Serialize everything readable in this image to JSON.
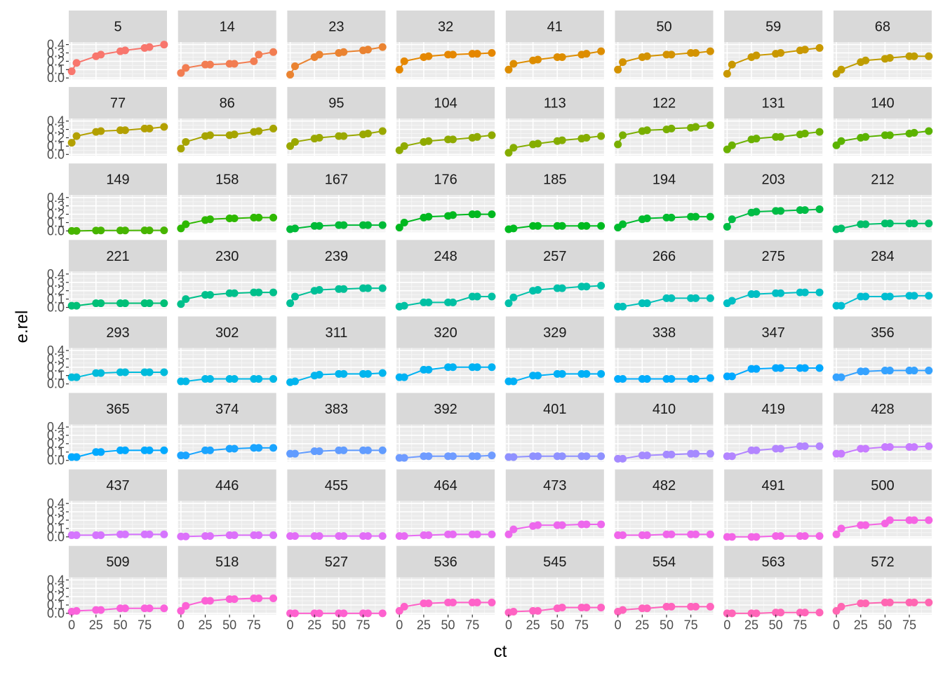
{
  "chart_data": {
    "type": "line",
    "facet_panels": [
      "5",
      "14",
      "23",
      "32",
      "41",
      "50",
      "59",
      "68",
      "77",
      "86",
      "95",
      "104",
      "113",
      "122",
      "131",
      "140",
      "149",
      "158",
      "167",
      "176",
      "185",
      "194",
      "203",
      "212",
      "221",
      "230",
      "239",
      "248",
      "257",
      "266",
      "275",
      "284",
      "293",
      "302",
      "311",
      "320",
      "329",
      "338",
      "347",
      "356",
      "365",
      "374",
      "383",
      "392",
      "401",
      "410",
      "419",
      "428",
      "437",
      "446",
      "455",
      "464",
      "473",
      "482",
      "491",
      "500",
      "509",
      "518",
      "527",
      "536",
      "545",
      "554",
      "563",
      "572"
    ],
    "xlabel": "ct",
    "ylabel": "e.rel",
    "x_ticks": [
      "0",
      "25",
      "50",
      "75"
    ],
    "y_ticks": [
      "0.0",
      "0.1",
      "0.2",
      "0.3",
      "0.4"
    ],
    "xlim": [
      -3,
      98
    ],
    "ylim": [
      -0.015,
      0.43
    ],
    "grid": true,
    "legend": "none",
    "x": [
      0,
      5,
      25,
      30,
      50,
      55,
      75,
      80,
      95
    ],
    "series": [
      {
        "panel": "5",
        "color": "#F8766D",
        "values": [
          0.08,
          0.18,
          0.26,
          0.28,
          0.32,
          0.33,
          0.36,
          0.37,
          0.4
        ]
      },
      {
        "panel": "14",
        "color": "#F27D52",
        "values": [
          0.06,
          0.12,
          0.16,
          0.16,
          0.17,
          0.17,
          0.2,
          0.28,
          0.31
        ]
      },
      {
        "panel": "23",
        "color": "#EA8331",
        "values": [
          0.04,
          0.14,
          0.25,
          0.28,
          0.3,
          0.31,
          0.33,
          0.34,
          0.37
        ]
      },
      {
        "panel": "32",
        "color": "#E58700",
        "values": [
          0.1,
          0.2,
          0.25,
          0.26,
          0.28,
          0.28,
          0.29,
          0.29,
          0.3
        ]
      },
      {
        "panel": "41",
        "color": "#DD8D00",
        "values": [
          0.1,
          0.17,
          0.21,
          0.22,
          0.25,
          0.25,
          0.28,
          0.29,
          0.32
        ]
      },
      {
        "panel": "50",
        "color": "#D39200",
        "values": [
          0.1,
          0.19,
          0.25,
          0.26,
          0.28,
          0.28,
          0.3,
          0.3,
          0.32
        ]
      },
      {
        "panel": "59",
        "color": "#C99800",
        "values": [
          0.05,
          0.16,
          0.25,
          0.27,
          0.29,
          0.3,
          0.33,
          0.34,
          0.36
        ]
      },
      {
        "panel": "68",
        "color": "#BF9D00",
        "values": [
          0.05,
          0.1,
          0.19,
          0.21,
          0.23,
          0.24,
          0.26,
          0.26,
          0.26
        ]
      },
      {
        "panel": "77",
        "color": "#B3A000",
        "values": [
          0.14,
          0.22,
          0.27,
          0.28,
          0.29,
          0.29,
          0.31,
          0.31,
          0.33
        ]
      },
      {
        "panel": "86",
        "color": "#A6A400",
        "values": [
          0.07,
          0.15,
          0.22,
          0.23,
          0.23,
          0.24,
          0.27,
          0.28,
          0.31
        ]
      },
      {
        "panel": "95",
        "color": "#9AA800",
        "values": [
          0.1,
          0.15,
          0.19,
          0.2,
          0.22,
          0.22,
          0.24,
          0.25,
          0.28
        ]
      },
      {
        "panel": "104",
        "color": "#8FAA00",
        "values": [
          0.05,
          0.1,
          0.15,
          0.16,
          0.18,
          0.18,
          0.2,
          0.21,
          0.23
        ]
      },
      {
        "panel": "113",
        "color": "#85AD00",
        "values": [
          0.02,
          0.08,
          0.12,
          0.13,
          0.16,
          0.17,
          0.19,
          0.2,
          0.22
        ]
      },
      {
        "panel": "122",
        "color": "#79AF00",
        "values": [
          0.12,
          0.23,
          0.28,
          0.29,
          0.3,
          0.31,
          0.32,
          0.33,
          0.35
        ]
      },
      {
        "panel": "131",
        "color": "#6BB100",
        "values": [
          0.06,
          0.11,
          0.18,
          0.19,
          0.21,
          0.21,
          0.24,
          0.25,
          0.27
        ]
      },
      {
        "panel": "140",
        "color": "#5BB300",
        "values": [
          0.11,
          0.16,
          0.2,
          0.21,
          0.23,
          0.23,
          0.25,
          0.26,
          0.28
        ]
      },
      {
        "panel": "149",
        "color": "#47B500",
        "values": [
          0.0,
          0.0,
          0.005,
          0.006,
          0.006,
          0.006,
          0.007,
          0.007,
          0.007
        ]
      },
      {
        "panel": "158",
        "color": "#2EB800",
        "values": [
          0.03,
          0.08,
          0.13,
          0.14,
          0.15,
          0.15,
          0.16,
          0.16,
          0.16
        ]
      },
      {
        "panel": "167",
        "color": "#00BA38",
        "values": [
          0.02,
          0.03,
          0.06,
          0.06,
          0.07,
          0.07,
          0.07,
          0.07,
          0.07
        ]
      },
      {
        "panel": "176",
        "color": "#00B81F",
        "values": [
          0.04,
          0.1,
          0.16,
          0.17,
          0.18,
          0.19,
          0.2,
          0.2,
          0.2
        ]
      },
      {
        "panel": "185",
        "color": "#00BA20",
        "values": [
          0.02,
          0.03,
          0.06,
          0.06,
          0.06,
          0.06,
          0.06,
          0.06,
          0.06
        ]
      },
      {
        "panel": "194",
        "color": "#00BB2E",
        "values": [
          0.04,
          0.08,
          0.14,
          0.15,
          0.16,
          0.16,
          0.17,
          0.17,
          0.17
        ]
      },
      {
        "panel": "203",
        "color": "#00BC45",
        "values": [
          0.05,
          0.14,
          0.22,
          0.23,
          0.24,
          0.24,
          0.25,
          0.25,
          0.26
        ]
      },
      {
        "panel": "212",
        "color": "#00BE68",
        "values": [
          0.02,
          0.03,
          0.08,
          0.08,
          0.09,
          0.09,
          0.09,
          0.09,
          0.09
        ]
      },
      {
        "panel": "221",
        "color": "#00BF77",
        "values": [
          0.02,
          0.02,
          0.05,
          0.05,
          0.05,
          0.05,
          0.05,
          0.05,
          0.05
        ]
      },
      {
        "panel": "230",
        "color": "#00C08B",
        "values": [
          0.04,
          0.1,
          0.15,
          0.15,
          0.17,
          0.17,
          0.18,
          0.18,
          0.18
        ]
      },
      {
        "panel": "239",
        "color": "#00C097",
        "values": [
          0.05,
          0.13,
          0.2,
          0.21,
          0.22,
          0.22,
          0.23,
          0.23,
          0.23
        ]
      },
      {
        "panel": "248",
        "color": "#00C0A3",
        "values": [
          0.01,
          0.02,
          0.06,
          0.06,
          0.06,
          0.06,
          0.13,
          0.13,
          0.13
        ]
      },
      {
        "panel": "257",
        "color": "#00C1AA",
        "values": [
          0.05,
          0.12,
          0.2,
          0.21,
          0.23,
          0.23,
          0.25,
          0.25,
          0.26
        ]
      },
      {
        "panel": "266",
        "color": "#00C0B8",
        "values": [
          0.01,
          0.01,
          0.05,
          0.05,
          0.11,
          0.11,
          0.11,
          0.11,
          0.11
        ]
      },
      {
        "panel": "275",
        "color": "#00BFC4",
        "values": [
          0.05,
          0.08,
          0.16,
          0.16,
          0.17,
          0.17,
          0.18,
          0.18,
          0.18
        ]
      },
      {
        "panel": "284",
        "color": "#00BDD0",
        "values": [
          0.02,
          0.02,
          0.13,
          0.13,
          0.13,
          0.13,
          0.14,
          0.14,
          0.14
        ]
      },
      {
        "panel": "293",
        "color": "#00BBDB",
        "values": [
          0.08,
          0.08,
          0.13,
          0.13,
          0.14,
          0.14,
          0.14,
          0.14,
          0.14
        ]
      },
      {
        "panel": "302",
        "color": "#00B8E7",
        "values": [
          0.03,
          0.03,
          0.06,
          0.06,
          0.06,
          0.06,
          0.06,
          0.06,
          0.06
        ]
      },
      {
        "panel": "311",
        "color": "#00B5EE",
        "values": [
          0.02,
          0.03,
          0.1,
          0.11,
          0.12,
          0.12,
          0.12,
          0.12,
          0.13
        ]
      },
      {
        "panel": "320",
        "color": "#00B2F3",
        "values": [
          0.08,
          0.08,
          0.17,
          0.17,
          0.2,
          0.2,
          0.2,
          0.2,
          0.2
        ]
      },
      {
        "panel": "329",
        "color": "#00B0F6",
        "values": [
          0.03,
          0.03,
          0.1,
          0.1,
          0.12,
          0.12,
          0.12,
          0.12,
          0.12
        ]
      },
      {
        "panel": "338",
        "color": "#00ACFC",
        "values": [
          0.06,
          0.06,
          0.06,
          0.06,
          0.06,
          0.06,
          0.06,
          0.06,
          0.07
        ]
      },
      {
        "panel": "347",
        "color": "#00A8FF",
        "values": [
          0.09,
          0.09,
          0.18,
          0.18,
          0.19,
          0.19,
          0.19,
          0.19,
          0.19
        ]
      },
      {
        "panel": "356",
        "color": "#35A2FF",
        "values": [
          0.08,
          0.08,
          0.15,
          0.15,
          0.16,
          0.16,
          0.16,
          0.16,
          0.16
        ]
      },
      {
        "panel": "365",
        "color": "#00A9FF",
        "values": [
          0.04,
          0.04,
          0.1,
          0.1,
          0.12,
          0.12,
          0.12,
          0.12,
          0.12
        ]
      },
      {
        "panel": "374",
        "color": "#1AA4FF",
        "values": [
          0.06,
          0.06,
          0.12,
          0.12,
          0.14,
          0.14,
          0.15,
          0.15,
          0.15
        ]
      },
      {
        "panel": "383",
        "color": "#619CFF",
        "values": [
          0.08,
          0.08,
          0.11,
          0.11,
          0.12,
          0.12,
          0.12,
          0.12,
          0.12
        ]
      },
      {
        "panel": "392",
        "color": "#6F9BFF",
        "values": [
          0.03,
          0.03,
          0.05,
          0.05,
          0.05,
          0.05,
          0.05,
          0.05,
          0.06
        ]
      },
      {
        "panel": "401",
        "color": "#8F91FF",
        "values": [
          0.04,
          0.04,
          0.05,
          0.05,
          0.05,
          0.05,
          0.05,
          0.05,
          0.05
        ]
      },
      {
        "panel": "410",
        "color": "#A58AFF",
        "values": [
          0.02,
          0.02,
          0.06,
          0.06,
          0.07,
          0.07,
          0.08,
          0.08,
          0.08
        ]
      },
      {
        "panel": "419",
        "color": "#B385FF",
        "values": [
          0.05,
          0.05,
          0.12,
          0.12,
          0.14,
          0.14,
          0.17,
          0.17,
          0.17
        ]
      },
      {
        "panel": "428",
        "color": "#C77CFF",
        "values": [
          0.08,
          0.08,
          0.14,
          0.14,
          0.16,
          0.16,
          0.16,
          0.16,
          0.17
        ]
      },
      {
        "panel": "437",
        "color": "#D575FE",
        "values": [
          0.02,
          0.02,
          0.02,
          0.02,
          0.03,
          0.03,
          0.03,
          0.03,
          0.03
        ]
      },
      {
        "panel": "446",
        "color": "#DC71FA",
        "values": [
          0.005,
          0.005,
          0.01,
          0.01,
          0.02,
          0.02,
          0.02,
          0.02,
          0.02
        ]
      },
      {
        "panel": "455",
        "color": "#E26EF7",
        "values": [
          0.01,
          0.01,
          0.01,
          0.01,
          0.01,
          0.01,
          0.01,
          0.01,
          0.01
        ]
      },
      {
        "panel": "464",
        "color": "#E76BF3",
        "values": [
          0.01,
          0.01,
          0.02,
          0.02,
          0.03,
          0.03,
          0.03,
          0.03,
          0.03
        ]
      },
      {
        "panel": "473",
        "color": "#ED68ED",
        "values": [
          0.03,
          0.09,
          0.13,
          0.14,
          0.14,
          0.14,
          0.15,
          0.15,
          0.15
        ]
      },
      {
        "panel": "482",
        "color": "#F066EA",
        "values": [
          0.02,
          0.02,
          0.02,
          0.02,
          0.03,
          0.03,
          0.03,
          0.03,
          0.03
        ]
      },
      {
        "panel": "491",
        "color": "#F365E6",
        "values": [
          0.0,
          0.0,
          0.0,
          0.0,
          0.01,
          0.01,
          0.01,
          0.01,
          0.01
        ]
      },
      {
        "panel": "500",
        "color": "#F564E3",
        "values": [
          0.03,
          0.1,
          0.14,
          0.14,
          0.16,
          0.2,
          0.2,
          0.2,
          0.2
        ]
      },
      {
        "panel": "509",
        "color": "#FA62DB",
        "values": [
          0.02,
          0.03,
          0.04,
          0.04,
          0.06,
          0.06,
          0.06,
          0.06,
          0.06
        ]
      },
      {
        "panel": "518",
        "color": "#FC61D5",
        "values": [
          0.03,
          0.09,
          0.15,
          0.15,
          0.17,
          0.17,
          0.18,
          0.18,
          0.18
        ]
      },
      {
        "panel": "527",
        "color": "#FE61CF",
        "values": [
          0.0,
          0.0,
          0.0,
          0.0,
          0.0,
          0.0,
          0.0,
          0.0,
          0.0
        ]
      },
      {
        "panel": "536",
        "color": "#FF62C9",
        "values": [
          0.03,
          0.08,
          0.12,
          0.12,
          0.13,
          0.13,
          0.13,
          0.13,
          0.13
        ]
      },
      {
        "panel": "545",
        "color": "#FF63C3",
        "values": [
          0.01,
          0.02,
          0.03,
          0.03,
          0.06,
          0.07,
          0.07,
          0.07,
          0.07
        ]
      },
      {
        "panel": "554",
        "color": "#FF64BD",
        "values": [
          0.02,
          0.04,
          0.06,
          0.06,
          0.08,
          0.08,
          0.08,
          0.08,
          0.08
        ]
      },
      {
        "panel": "563",
        "color": "#FF65B8",
        "values": [
          0.0,
          0.0,
          0.0,
          0.0,
          0.01,
          0.01,
          0.01,
          0.01,
          0.01
        ]
      },
      {
        "panel": "572",
        "color": "#FF66B2",
        "values": [
          0.03,
          0.08,
          0.12,
          0.12,
          0.13,
          0.13,
          0.13,
          0.13,
          0.13
        ]
      }
    ]
  }
}
